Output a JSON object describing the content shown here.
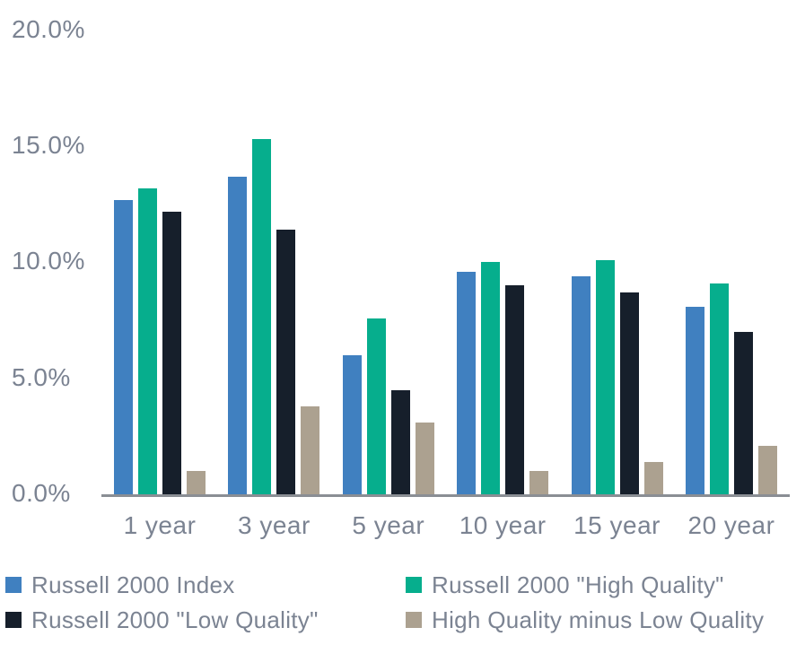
{
  "chart_data": {
    "type": "bar",
    "title": "",
    "xlabel": "",
    "ylabel": "",
    "categories": [
      "1 year",
      "3 year",
      "5 year",
      "10 year",
      "15 year",
      "20 year"
    ],
    "series": [
      {
        "name": "Russell 2000 Index",
        "color": "#4080C0",
        "values": [
          12.7,
          13.7,
          6.0,
          9.6,
          9.4,
          8.1
        ]
      },
      {
        "name": "Russell 2000 \"High Quality\"",
        "color": "#06AE8D",
        "values": [
          13.2,
          15.3,
          7.6,
          10.0,
          10.1,
          9.1
        ]
      },
      {
        "name": "Russell 2000 \"Low Quality\"",
        "color": "#161F2B",
        "values": [
          12.2,
          11.4,
          4.5,
          9.0,
          8.7,
          7.0
        ]
      },
      {
        "name": "High Quality minus Low Quality",
        "color": "#ACA190",
        "values": [
          1.0,
          3.8,
          3.1,
          1.0,
          1.4,
          2.1
        ]
      }
    ],
    "ylim": [
      0,
      20
    ],
    "y_tick_labels": [
      "20.0%",
      "15.0%",
      "10.0%",
      "5.0%",
      "0.0%"
    ],
    "grid": false,
    "legend_position": "bottom"
  },
  "colors": {
    "axis_line": "#8A8E94",
    "text": "#7B8392",
    "background": "#FFFFFF"
  }
}
